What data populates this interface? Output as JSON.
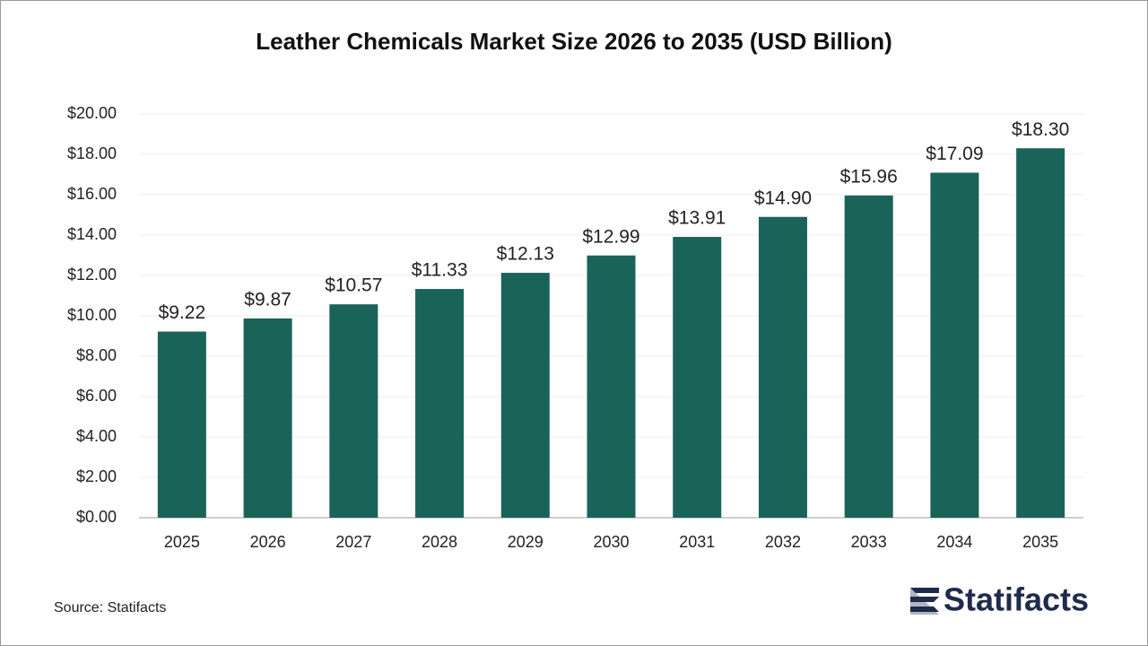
{
  "chart_data": {
    "type": "bar",
    "title": "Leather Chemicals Market Size 2026 to 2035 (USD Billion)",
    "categories": [
      "2025",
      "2026",
      "2027",
      "2028",
      "2029",
      "2030",
      "2031",
      "2032",
      "2033",
      "2034",
      "2035"
    ],
    "values": [
      9.22,
      9.87,
      10.57,
      11.33,
      12.13,
      12.99,
      13.91,
      14.9,
      15.96,
      17.09,
      18.3
    ],
    "value_labels": [
      "$9.22",
      "$9.87",
      "$10.57",
      "$11.33",
      "$12.13",
      "$12.99",
      "$13.91",
      "$14.90",
      "$15.96",
      "$17.09",
      "$18.30"
    ],
    "color": "#1a6358",
    "ylim": [
      0,
      20
    ],
    "yticks": [
      {
        "value": 0,
        "label": "$0.00"
      },
      {
        "value": 2,
        "label": "$2.00"
      },
      {
        "value": 4,
        "label": "$4.00"
      },
      {
        "value": 6,
        "label": "$6.00"
      },
      {
        "value": 8,
        "label": "$8.00"
      },
      {
        "value": 10,
        "label": "$10.00"
      },
      {
        "value": 12,
        "label": "$12.00"
      },
      {
        "value": 14,
        "label": "$14.00"
      },
      {
        "value": 16,
        "label": "$16.00"
      },
      {
        "value": 18,
        "label": "$18.00"
      },
      {
        "value": 20,
        "label": "$20.00"
      }
    ],
    "grid": true,
    "source": "Source: Statifacts",
    "logo": "Statifacts"
  }
}
